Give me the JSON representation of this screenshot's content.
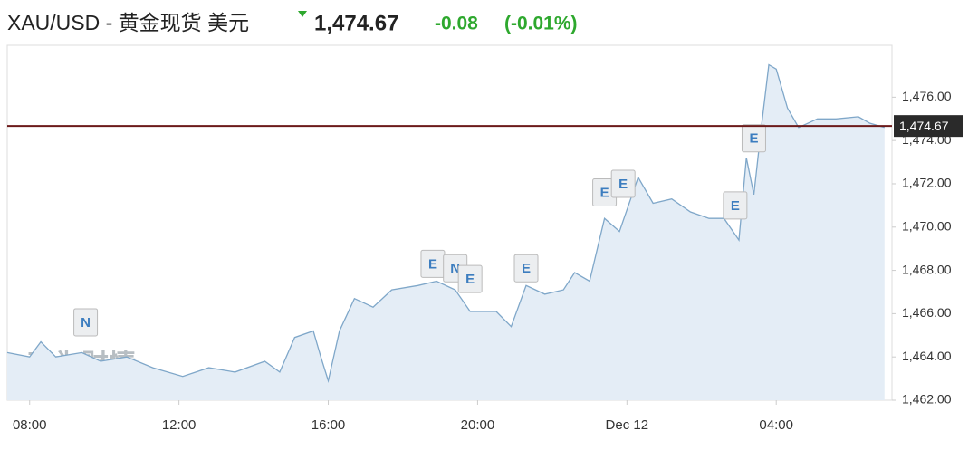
{
  "header": {
    "symbol": "XAU/USD - 黄金现货 美元",
    "price": "1,474.67",
    "change": "-0.08",
    "change_pct": "(-0.01%)"
  },
  "chart_data": {
    "type": "area",
    "x": [
      7.4,
      8.0,
      8.3,
      8.7,
      9.4,
      9.9,
      10.6,
      11.3,
      12.1,
      12.8,
      13.5,
      14.3,
      14.7,
      15.1,
      15.6,
      15.8,
      16.0,
      16.3,
      16.7,
      17.2,
      17.7,
      18.4,
      18.9,
      19.4,
      19.8,
      20.5,
      20.9,
      21.3,
      21.8,
      22.3,
      22.6,
      23.0,
      23.4,
      23.8,
      24.3,
      24.7,
      25.2,
      25.7,
      26.2,
      26.6,
      27.0,
      27.2,
      27.4,
      27.6,
      27.8,
      28.0,
      28.3,
      28.6,
      29.1,
      29.6,
      30.2,
      30.5,
      30.9
    ],
    "values": [
      1464.2,
      1464.0,
      1464.7,
      1464.0,
      1464.2,
      1463.8,
      1464.0,
      1463.5,
      1463.1,
      1463.5,
      1463.3,
      1463.8,
      1463.3,
      1464.9,
      1465.2,
      1464.0,
      1462.9,
      1465.2,
      1466.7,
      1466.3,
      1467.1,
      1467.3,
      1467.5,
      1467.1,
      1466.1,
      1466.1,
      1465.4,
      1467.3,
      1466.9,
      1467.1,
      1467.9,
      1467.5,
      1470.4,
      1469.8,
      1472.3,
      1471.1,
      1471.3,
      1470.7,
      1470.4,
      1470.4,
      1469.4,
      1473.2,
      1471.5,
      1474.6,
      1477.5,
      1477.3,
      1475.5,
      1474.6,
      1475.0,
      1475.0,
      1475.1,
      1474.8,
      1474.6
    ],
    "color": "#7fa7c9",
    "fill": "#e4edf6",
    "xlim": [
      7.4,
      31.1
    ],
    "ylim": [
      1462,
      1478.4
    ],
    "xticks": [
      {
        "value": 8,
        "label": "08:00"
      },
      {
        "value": 12,
        "label": "12:00"
      },
      {
        "value": 16,
        "label": "16:00"
      },
      {
        "value": 20,
        "label": "20:00"
      },
      {
        "value": 24,
        "label": "Dec 12"
      },
      {
        "value": 28,
        "label": "04:00"
      }
    ],
    "yticks": [
      {
        "value": 1462,
        "label": "1,462.00"
      },
      {
        "value": 1464,
        "label": "1,464.00"
      },
      {
        "value": 1466,
        "label": "1,466.00"
      },
      {
        "value": 1468,
        "label": "1,468.00"
      },
      {
        "value": 1470,
        "label": "1,470.00"
      },
      {
        "value": 1472,
        "label": "1,472.00"
      },
      {
        "value": 1474,
        "label": "1,474.00"
      },
      {
        "value": 1476,
        "label": "1,476.00"
      }
    ],
    "reference_line": {
      "value": 1474.67,
      "label": "1,474.67",
      "color": "#6b1a1a"
    },
    "events": [
      {
        "label": "N",
        "x": 9.5,
        "y": 1465.6
      },
      {
        "label": "E",
        "x": 18.8,
        "y": 1468.3
      },
      {
        "label": "N",
        "x": 19.4,
        "y": 1468.1
      },
      {
        "label": "E",
        "x": 19.8,
        "y": 1467.6
      },
      {
        "label": "E",
        "x": 21.3,
        "y": 1468.1
      },
      {
        "label": "E",
        "x": 23.4,
        "y": 1471.6
      },
      {
        "label": "E",
        "x": 23.9,
        "y": 1472.0
      },
      {
        "label": "E",
        "x": 26.9,
        "y": 1471.0
      },
      {
        "label": "E",
        "x": 27.4,
        "y": 1474.1
      }
    ],
    "watermark": {
      "name": "英为财情",
      "brand": "Investing",
      "domain": ".com"
    }
  }
}
